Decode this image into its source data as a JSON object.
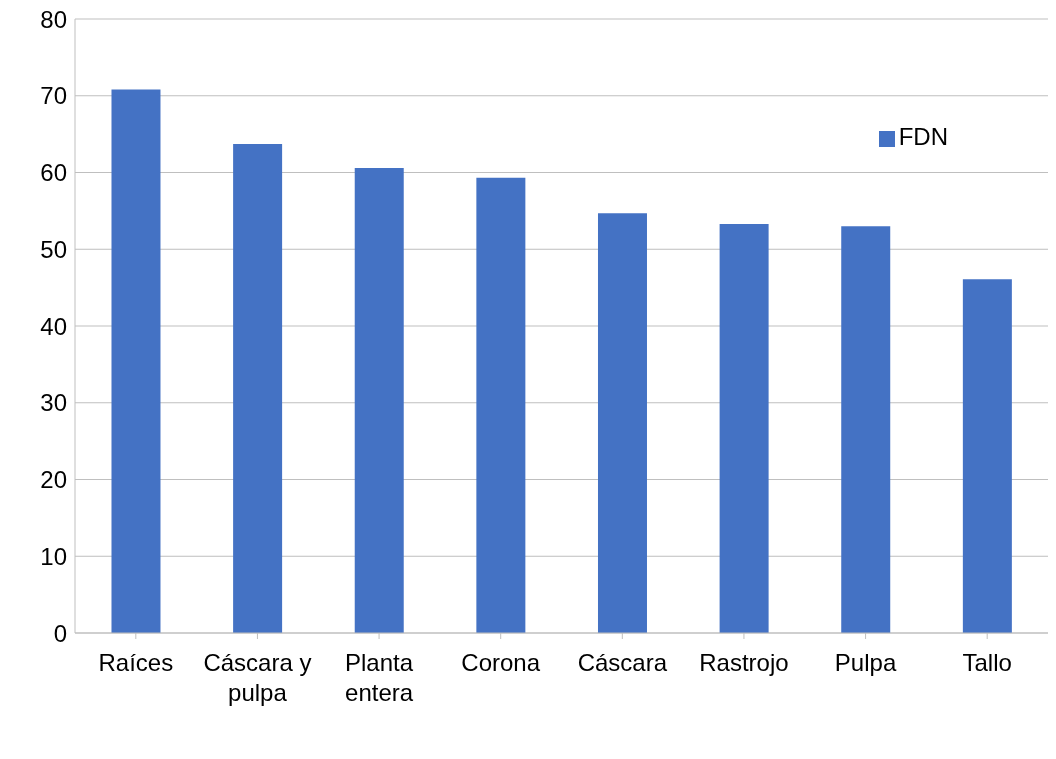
{
  "chart_data": {
    "type": "bar",
    "categories": [
      "Raíces",
      "Cáscara y pulpa",
      "Planta entera",
      "Corona",
      "Cáscara",
      "Rastrojo",
      "Pulpa",
      "Tallo"
    ],
    "series": [
      {
        "name": "FDN",
        "color": "#4472c4",
        "values": [
          70.8,
          63.7,
          60.6,
          59.3,
          54.7,
          53.3,
          53.0,
          46.1
        ]
      }
    ],
    "ylim": [
      0,
      80
    ],
    "yticks": [
      0,
      10,
      20,
      30,
      40,
      50,
      60,
      70,
      80
    ],
    "grid": "y",
    "legend": "top right"
  }
}
